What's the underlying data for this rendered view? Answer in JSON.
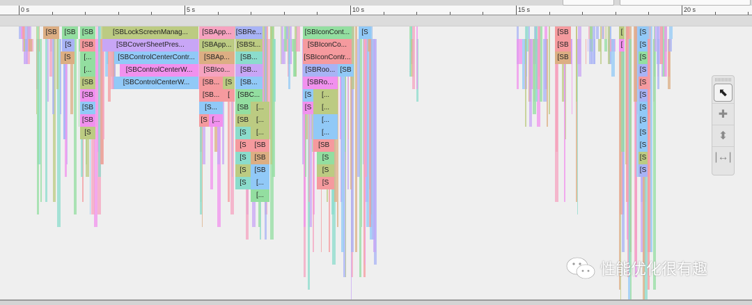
{
  "ruler": {
    "tick_labels": [
      "0 s",
      "5 s",
      "10 s",
      "15 s",
      "20 s"
    ],
    "major_seconds": [
      0,
      5,
      10,
      15,
      20
    ],
    "minor_step_seconds": 1
  },
  "colors": {
    "tan": "#dcae83",
    "green": "#93dea0",
    "olive": "#bccb82",
    "salmon": "#f59a9e",
    "magenta": "#f191ee",
    "purple": "#c8a6f6",
    "blue": "#91c9f7",
    "peri": "#a8b3f5",
    "teal": "#8bdccc",
    "pink": "#f6a3c0"
  },
  "blocks": [
    [
      0,
      0.74,
      1.22,
      "tan",
      "[SB"
    ],
    [
      0,
      1.3,
      1.79,
      "green",
      "[SB"
    ],
    [
      0,
      1.85,
      2.31,
      "green",
      "[SB"
    ],
    [
      0,
      2.52,
      5.42,
      "olive",
      "[SBLockScreenManag..."
    ],
    [
      0,
      5.44,
      6.51,
      "pink",
      "[SBApp..."
    ],
    [
      0,
      6.53,
      7.35,
      "peri",
      "[SBRe..."
    ],
    [
      0,
      8.57,
      10.04,
      "green",
      "[SBIconCont..."
    ],
    [
      0,
      10.25,
      10.63,
      "blue",
      "[S"
    ],
    [
      0,
      16.18,
      16.66,
      "salmon",
      "[SB"
    ],
    [
      0,
      18.11,
      18.28,
      "olive",
      "["
    ],
    [
      0,
      18.7,
      18.97,
      "blue",
      "[S"
    ],
    [
      1,
      1.3,
      1.68,
      "peri",
      "[S"
    ],
    [
      1,
      1.85,
      2.31,
      "salmon",
      "[SB"
    ],
    [
      1,
      2.52,
      5.42,
      "purple",
      "[SBCoverSheetPres..."
    ],
    [
      1,
      5.44,
      6.51,
      "olive",
      "[SBApp..."
    ],
    [
      1,
      6.53,
      7.35,
      "olive",
      "[SBSt..."
    ],
    [
      1,
      8.57,
      10.04,
      "salmon",
      "[SBIconCo..."
    ],
    [
      1,
      16.18,
      16.66,
      "salmon",
      "[SB"
    ],
    [
      1,
      18.11,
      18.28,
      "magenta",
      "["
    ],
    [
      1,
      18.7,
      18.97,
      "blue",
      "[S"
    ],
    [
      2,
      1.26,
      1.68,
      "tan",
      "[S"
    ],
    [
      2,
      1.85,
      2.31,
      "green",
      "[..."
    ],
    [
      2,
      2.88,
      5.42,
      "blue",
      "[SBControlCenterContr..."
    ],
    [
      2,
      5.44,
      6.51,
      "tan",
      "[SBAp..."
    ],
    [
      2,
      6.53,
      7.35,
      "teal",
      "[SB..."
    ],
    [
      2,
      8.57,
      10.04,
      "salmon",
      "[SBIconContr..."
    ],
    [
      2,
      16.18,
      16.66,
      "tan",
      "[SB"
    ],
    [
      2,
      18.7,
      18.97,
      "green",
      "[S"
    ],
    [
      3,
      1.85,
      2.31,
      "green",
      "[..."
    ],
    [
      3,
      3.05,
      5.42,
      "magenta",
      "[SBControlCenterW..."
    ],
    [
      3,
      5.44,
      6.51,
      "pink",
      "[SBIco..."
    ],
    [
      3,
      6.53,
      7.35,
      "purple",
      "[SB..."
    ],
    [
      3,
      8.57,
      9.62,
      "peri",
      "[SBRoo..."
    ],
    [
      3,
      9.62,
      10.11,
      "blue",
      "[SB"
    ],
    [
      3,
      18.7,
      18.97,
      "peri",
      "[S"
    ],
    [
      4,
      1.85,
      2.31,
      "olive",
      "[SB"
    ],
    [
      4,
      2.88,
      5.42,
      "blue",
      "[SBControlCenterW..."
    ],
    [
      4,
      5.44,
      6.16,
      "salmon",
      "[SB..."
    ],
    [
      4,
      6.16,
      6.51,
      "olive",
      "[S"
    ],
    [
      4,
      6.53,
      7.35,
      "blue",
      "[SB..."
    ],
    [
      4,
      8.57,
      9.62,
      "magenta",
      "[SBRo..."
    ],
    [
      4,
      18.7,
      18.97,
      "salmon",
      "[S"
    ],
    [
      5,
      1.85,
      2.31,
      "magenta",
      "[SB"
    ],
    [
      5,
      5.44,
      6.16,
      "salmon",
      "[SB..."
    ],
    [
      5,
      6.16,
      6.51,
      "salmon",
      "["
    ],
    [
      5,
      6.53,
      7.35,
      "green",
      "[SBC..."
    ],
    [
      5,
      8.57,
      8.89,
      "blue",
      "[S"
    ],
    [
      5,
      8.89,
      9.62,
      "olive",
      "[..."
    ],
    [
      5,
      18.7,
      18.97,
      "peri",
      "[S"
    ],
    [
      6,
      1.85,
      2.31,
      "blue",
      "[SB"
    ],
    [
      6,
      5.44,
      6.16,
      "blue",
      "[S..."
    ],
    [
      6,
      6.53,
      7.0,
      "green",
      "[SB"
    ],
    [
      6,
      7.0,
      7.56,
      "olive",
      "[..."
    ],
    [
      6,
      8.57,
      8.89,
      "magenta",
      "[S"
    ],
    [
      6,
      8.89,
      9.62,
      "olive",
      "[..."
    ],
    [
      6,
      18.7,
      18.97,
      "blue",
      "[S"
    ],
    [
      7,
      1.85,
      2.31,
      "magenta",
      "[SB"
    ],
    [
      7,
      5.44,
      5.74,
      "salmon",
      "[S"
    ],
    [
      7,
      5.74,
      6.16,
      "magenta",
      "[..."
    ],
    [
      7,
      6.53,
      7.0,
      "olive",
      "[SB"
    ],
    [
      7,
      7.0,
      7.56,
      "olive",
      "[..."
    ],
    [
      7,
      8.89,
      9.62,
      "blue",
      "[..."
    ],
    [
      7,
      18.7,
      18.97,
      "blue",
      "[S"
    ],
    [
      8,
      1.85,
      2.31,
      "olive",
      "[S"
    ],
    [
      8,
      6.53,
      7.0,
      "teal",
      "[S"
    ],
    [
      8,
      7.0,
      7.56,
      "olive",
      "[..."
    ],
    [
      8,
      8.89,
      9.62,
      "blue",
      "[..."
    ],
    [
      8,
      18.7,
      18.97,
      "blue",
      "[S"
    ],
    [
      9,
      6.53,
      7.0,
      "salmon",
      "[S"
    ],
    [
      9,
      7.0,
      7.56,
      "salmon",
      "[SB"
    ],
    [
      9,
      8.89,
      9.52,
      "salmon",
      "[SB"
    ],
    [
      9,
      18.7,
      18.97,
      "blue",
      "[S"
    ],
    [
      10,
      6.53,
      7.0,
      "teal",
      "[S"
    ],
    [
      10,
      7.0,
      7.56,
      "tan",
      "[SB"
    ],
    [
      10,
      8.99,
      9.52,
      "green",
      "[S"
    ],
    [
      10,
      18.7,
      18.97,
      "olive",
      "[S"
    ],
    [
      11,
      6.53,
      7.0,
      "olive",
      "[S"
    ],
    [
      11,
      7.0,
      7.56,
      "blue",
      "[SB"
    ],
    [
      11,
      8.99,
      9.52,
      "olive",
      "[S"
    ],
    [
      11,
      18.7,
      18.97,
      "peri",
      "[S"
    ],
    [
      12,
      6.53,
      7.0,
      "teal",
      "[S"
    ],
    [
      12,
      7.0,
      7.56,
      "blue",
      "[..."
    ],
    [
      12,
      8.99,
      9.52,
      "salmon",
      "[S"
    ],
    [
      13,
      7.0,
      7.56,
      "green",
      "[..."
    ]
  ],
  "tools": [
    {
      "icon": "arrow-pointer-icon",
      "selected": true
    },
    {
      "icon": "move-cross-icon"
    },
    {
      "icon": "vertical-arrow-icon"
    },
    {
      "icon": "horizontal-span-icon"
    }
  ],
  "watermark": {
    "text": "性能优化很有趣"
  }
}
